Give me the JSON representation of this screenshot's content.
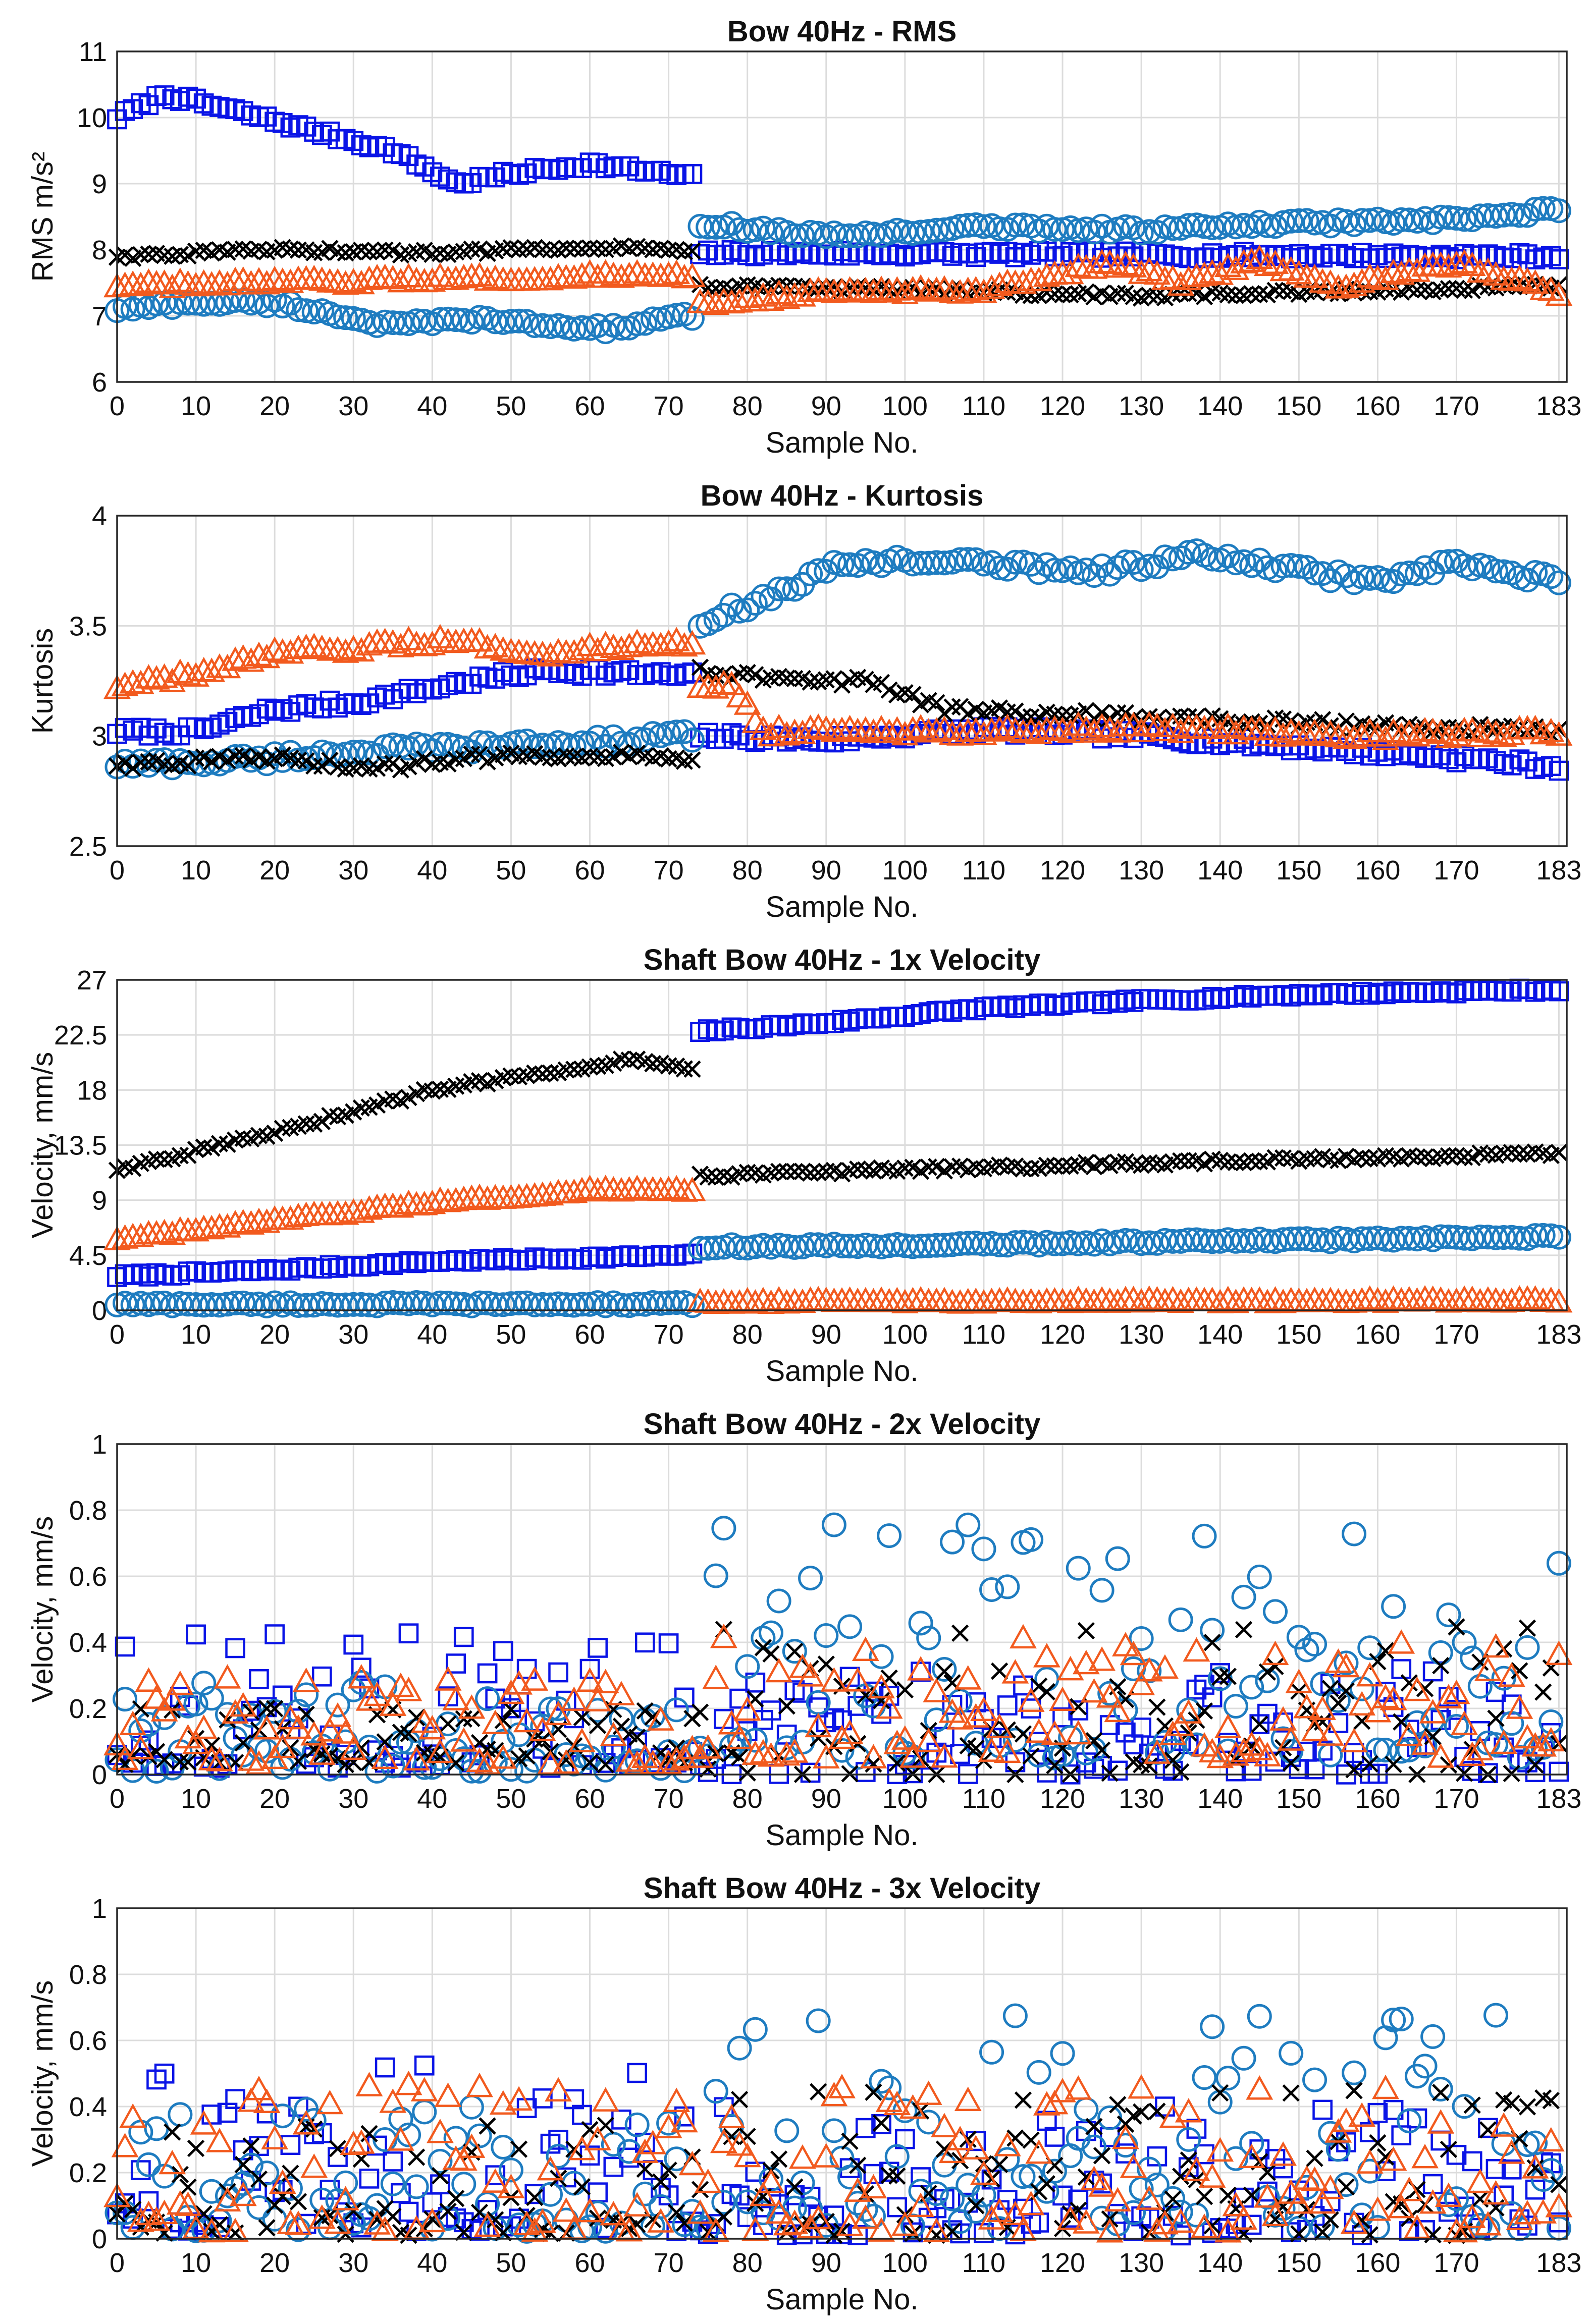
{
  "colors": {
    "squares": "#0a14e6",
    "circles": "#1e7cc0",
    "crosses": "#000000",
    "triangles": "#f25a1e"
  },
  "chart_data": [
    {
      "type": "scatter",
      "title": "Bow 40Hz - RMS",
      "xlabel": "Sample No.",
      "ylabel": "RMS m/s²",
      "xlim": [
        0,
        184
      ],
      "ylim": [
        6,
        11
      ],
      "xticks": [
        "0",
        "10",
        "20",
        "30",
        "40",
        "50",
        "60",
        "70",
        "80",
        "90",
        "100",
        "110",
        "120",
        "130",
        "140",
        "150",
        "160",
        "170",
        "183"
      ],
      "yticks": [
        "6",
        "7",
        "8",
        "9",
        "10",
        "11"
      ],
      "grid": true,
      "series": [
        {
          "name": "Squares",
          "marker": "square",
          "color": "#0a14e6",
          "kind": "smooth",
          "anchors1": [
            [
              0,
              10.0
            ],
            [
              6,
              10.35
            ],
            [
              15,
              10.1
            ],
            [
              25,
              9.8
            ],
            [
              35,
              9.5
            ],
            [
              43,
              9.0
            ],
            [
              50,
              9.15
            ],
            [
              60,
              9.3
            ],
            [
              73,
              9.1
            ]
          ],
          "anchors2": [
            [
              74,
              7.95
            ],
            [
              183,
              7.9
            ]
          ],
          "noise": 0.05
        },
        {
          "name": "Circles",
          "marker": "circle",
          "color": "#1e7cc0",
          "kind": "smooth",
          "anchors1": [
            [
              0,
              7.1
            ],
            [
              10,
              7.2
            ],
            [
              20,
              7.2
            ],
            [
              35,
              6.85
            ],
            [
              45,
              6.95
            ],
            [
              55,
              6.85
            ],
            [
              62,
              6.8
            ],
            [
              73,
              7.0
            ]
          ],
          "anchors2": [
            [
              74,
              8.4
            ],
            [
              90,
              8.2
            ],
            [
              110,
              8.35
            ],
            [
              130,
              8.3
            ],
            [
              150,
              8.4
            ],
            [
              170,
              8.45
            ],
            [
              183,
              8.6
            ]
          ],
          "noise": 0.05
        },
        {
          "name": "Crosses",
          "marker": "cross",
          "color": "#000000",
          "kind": "smooth",
          "anchors1": [
            [
              0,
              7.9
            ],
            [
              20,
              8.0
            ],
            [
              40,
              7.95
            ],
            [
              60,
              8.05
            ],
            [
              73,
              8.0
            ]
          ],
          "anchors2": [
            [
              74,
              7.45
            ],
            [
              100,
              7.4
            ],
            [
              130,
              7.3
            ],
            [
              183,
              7.45
            ]
          ],
          "noise": 0.04
        },
        {
          "name": "Triangles",
          "marker": "triangle",
          "color": "#f25a1e",
          "kind": "smooth",
          "anchors1": [
            [
              0,
              7.45
            ],
            [
              20,
              7.5
            ],
            [
              40,
              7.55
            ],
            [
              60,
              7.6
            ],
            [
              73,
              7.6
            ]
          ],
          "anchors2": [
            [
              74,
              7.2
            ],
            [
              90,
              7.35
            ],
            [
              110,
              7.4
            ],
            [
              126,
              7.8
            ],
            [
              135,
              7.5
            ],
            [
              145,
              7.85
            ],
            [
              155,
              7.45
            ],
            [
              170,
              7.8
            ],
            [
              183,
              7.35
            ]
          ],
          "noise": 0.05
        }
      ]
    },
    {
      "type": "scatter",
      "title": "Bow 40Hz - Kurtosis",
      "xlabel": "Sample No.",
      "ylabel": "Kurtosis",
      "xlim": [
        0,
        184
      ],
      "ylim": [
        2.5,
        4
      ],
      "xticks": [
        "0",
        "10",
        "20",
        "30",
        "40",
        "50",
        "60",
        "70",
        "80",
        "90",
        "100",
        "110",
        "120",
        "130",
        "140",
        "150",
        "160",
        "170",
        "183"
      ],
      "yticks": [
        "2.5",
        "3",
        "3.5",
        "4"
      ],
      "grid": true,
      "series": [
        {
          "name": "Squares",
          "marker": "square",
          "color": "#0a14e6",
          "kind": "smooth",
          "anchors1": [
            [
              0,
              3.02
            ],
            [
              10,
              3.02
            ],
            [
              20,
              3.12
            ],
            [
              30,
              3.15
            ],
            [
              45,
              3.25
            ],
            [
              55,
              3.3
            ],
            [
              73,
              3.27
            ]
          ],
          "anchors2": [
            [
              74,
              3.0
            ],
            [
              90,
              2.98
            ],
            [
              110,
              3.03
            ],
            [
              130,
              3.0
            ],
            [
              150,
              2.95
            ],
            [
              170,
              2.9
            ],
            [
              183,
              2.86
            ]
          ],
          "noise": 0.02
        },
        {
          "name": "Circles",
          "marker": "circle",
          "color": "#1e7cc0",
          "kind": "smooth",
          "anchors1": [
            [
              0,
              2.87
            ],
            [
              10,
              2.88
            ],
            [
              20,
              2.9
            ],
            [
              30,
              2.93
            ],
            [
              45,
              2.95
            ],
            [
              60,
              2.97
            ],
            [
              73,
              3.0
            ]
          ],
          "anchors2": [
            [
              74,
              3.52
            ],
            [
              82,
              3.62
            ],
            [
              92,
              3.78
            ],
            [
              100,
              3.8
            ],
            [
              110,
              3.78
            ],
            [
              125,
              3.75
            ],
            [
              137,
              3.82
            ],
            [
              150,
              3.75
            ],
            [
              160,
              3.7
            ],
            [
              170,
              3.78
            ],
            [
              183,
              3.7
            ]
          ],
          "noise": 0.025
        },
        {
          "name": "Crosses",
          "marker": "cross",
          "color": "#000000",
          "kind": "smooth",
          "anchors1": [
            [
              0,
              2.87
            ],
            [
              20,
              2.9
            ],
            [
              32,
              2.85
            ],
            [
              45,
              2.9
            ],
            [
              60,
              2.92
            ],
            [
              73,
              2.9
            ]
          ],
          "anchors2": [
            [
              74,
              3.3
            ],
            [
              85,
              3.25
            ],
            [
              95,
              3.25
            ],
            [
              105,
              3.12
            ],
            [
              120,
              3.1
            ],
            [
              140,
              3.07
            ],
            [
              160,
              3.05
            ],
            [
              183,
              3.02
            ]
          ],
          "noise": 0.02
        },
        {
          "name": "Triangles",
          "marker": "triangle",
          "color": "#f25a1e",
          "kind": "smooth",
          "anchors1": [
            [
              0,
              3.22
            ],
            [
              10,
              3.28
            ],
            [
              20,
              3.37
            ],
            [
              30,
              3.4
            ],
            [
              42,
              3.43
            ],
            [
              55,
              3.38
            ],
            [
              73,
              3.42
            ]
          ],
          "anchors2": [
            [
              74,
              3.22
            ],
            [
              78,
              3.25
            ],
            [
              82,
              3.02
            ],
            [
              100,
              3.02
            ],
            [
              120,
              3.03
            ],
            [
              140,
              3.03
            ],
            [
              160,
              3.0
            ],
            [
              183,
              3.02
            ]
          ],
          "noise": 0.02
        }
      ]
    },
    {
      "type": "scatter",
      "title": "Shaft Bow 40Hz - 1x Velocity",
      "xlabel": "Sample No.",
      "ylabel": "Velocity, mm/s",
      "xlim": [
        0,
        184
      ],
      "ylim": [
        0,
        27
      ],
      "xticks": [
        "0",
        "10",
        "20",
        "30",
        "40",
        "50",
        "60",
        "70",
        "80",
        "90",
        "100",
        "110",
        "120",
        "130",
        "140",
        "150",
        "160",
        "170",
        "183"
      ],
      "yticks": [
        "0",
        "4.5",
        "9",
        "13.5",
        "18",
        "22.5",
        "27"
      ],
      "grid": true,
      "series": [
        {
          "name": "Squares",
          "marker": "square",
          "color": "#0a14e6",
          "kind": "smooth",
          "anchors1": [
            [
              0,
              2.8
            ],
            [
              20,
              3.3
            ],
            [
              40,
              4.0
            ],
            [
              60,
              4.3
            ],
            [
              73,
              4.5
            ]
          ],
          "anchors2": [
            [
              74,
              22.8
            ],
            [
              90,
              23.5
            ],
            [
              110,
              24.7
            ],
            [
              130,
              25.3
            ],
            [
              150,
              25.8
            ],
            [
              183,
              26.2
            ]
          ],
          "noise": 0.15
        },
        {
          "name": "Circles",
          "marker": "circle",
          "color": "#1e7cc0",
          "kind": "smooth",
          "anchors1": [
            [
              0,
              0.5
            ],
            [
              73,
              0.5
            ]
          ],
          "anchors2": [
            [
              74,
              5.2
            ],
            [
              100,
              5.3
            ],
            [
              130,
              5.6
            ],
            [
              160,
              5.8
            ],
            [
              183,
              6.0
            ]
          ],
          "noise": 0.15
        },
        {
          "name": "Crosses",
          "marker": "cross",
          "color": "#000000",
          "kind": "smooth",
          "anchors1": [
            [
              0,
              11.5
            ],
            [
              20,
              14.5
            ],
            [
              40,
              18.0
            ],
            [
              55,
              19.5
            ],
            [
              65,
              20.5
            ],
            [
              73,
              19.8
            ]
          ],
          "anchors2": [
            [
              74,
              11.0
            ],
            [
              100,
              11.5
            ],
            [
              130,
              12.0
            ],
            [
              160,
              12.5
            ],
            [
              183,
              12.8
            ]
          ],
          "noise": 0.2
        },
        {
          "name": "Triangles",
          "marker": "triangle",
          "color": "#f25a1e",
          "kind": "smooth",
          "anchors1": [
            [
              0,
              5.8
            ],
            [
              20,
              7.3
            ],
            [
              40,
              8.8
            ],
            [
              60,
              9.8
            ],
            [
              73,
              9.8
            ]
          ],
          "anchors2": [
            [
              74,
              0.7
            ],
            [
              183,
              0.8
            ]
          ],
          "noise": 0.15
        }
      ]
    },
    {
      "type": "scatter",
      "title": "Shaft Bow 40Hz - 2x Velocity",
      "xlabel": "Sample No.",
      "ylabel": "Velocity, mm/s",
      "xlim": [
        0,
        184
      ],
      "ylim": [
        0,
        1
      ],
      "xticks": [
        "0",
        "10",
        "20",
        "30",
        "40",
        "50",
        "60",
        "70",
        "80",
        "90",
        "100",
        "110",
        "120",
        "130",
        "140",
        "150",
        "160",
        "170",
        "183"
      ],
      "yticks": [
        "0",
        "0.2",
        "0.4",
        "0.6",
        "0.8",
        "1"
      ],
      "grid": true,
      "series": [
        {
          "name": "Squares",
          "marker": "square",
          "color": "#0a14e6",
          "kind": "random",
          "seed": 11,
          "ranges": [
            [
              0,
              73,
              0.02,
              0.45
            ],
            [
              74,
              183,
              0.0,
              0.32
            ]
          ]
        },
        {
          "name": "Circles",
          "marker": "circle",
          "color": "#1e7cc0",
          "kind": "random",
          "seed": 23,
          "ranges": [
            [
              0,
              73,
              0.01,
              0.28
            ],
            [
              74,
              183,
              0.05,
              0.77
            ]
          ]
        },
        {
          "name": "Crosses",
          "marker": "cross",
          "color": "#000000",
          "kind": "random",
          "seed": 37,
          "ranges": [
            [
              0,
              73,
              0.03,
              0.2
            ],
            [
              74,
              183,
              0.0,
              0.45
            ]
          ]
        },
        {
          "name": "Triangles",
          "marker": "triangle",
          "color": "#f25a1e",
          "kind": "random",
          "seed": 51,
          "ranges": [
            [
              0,
              73,
              0.03,
              0.3
            ],
            [
              74,
              183,
              0.05,
              0.42
            ]
          ]
        }
      ]
    },
    {
      "type": "scatter",
      "title": "Shaft Bow 40Hz - 3x Velocity",
      "xlabel": "Sample No.",
      "ylabel": "Velocity, mm/s",
      "xlim": [
        0,
        184
      ],
      "ylim": [
        0,
        1
      ],
      "xticks": [
        "0",
        "10",
        "20",
        "30",
        "40",
        "50",
        "60",
        "70",
        "80",
        "90",
        "100",
        "110",
        "120",
        "130",
        "140",
        "150",
        "160",
        "170",
        "183"
      ],
      "yticks": [
        "0",
        "0.2",
        "0.4",
        "0.6",
        "0.8",
        "1"
      ],
      "grid": true,
      "series": [
        {
          "name": "Squares",
          "marker": "square",
          "color": "#0a14e6",
          "kind": "random",
          "seed": 71,
          "ranges": [
            [
              0,
              73,
              0.02,
              0.53
            ],
            [
              74,
              183,
              0.01,
              0.4
            ]
          ]
        },
        {
          "name": "Circles",
          "marker": "circle",
          "color": "#1e7cc0",
          "kind": "random",
          "seed": 83,
          "ranges": [
            [
              0,
              73,
              0.02,
              0.42
            ],
            [
              74,
              183,
              0.03,
              0.68
            ]
          ]
        },
        {
          "name": "Crosses",
          "marker": "cross",
          "color": "#000000",
          "kind": "random",
          "seed": 97,
          "ranges": [
            [
              0,
              73,
              0.01,
              0.35
            ],
            [
              74,
              183,
              0.01,
              0.45
            ]
          ]
        },
        {
          "name": "Triangles",
          "marker": "triangle",
          "color": "#f25a1e",
          "kind": "random",
          "seed": 101,
          "ranges": [
            [
              0,
              73,
              0.02,
              0.47
            ],
            [
              74,
              183,
              0.02,
              0.46
            ]
          ]
        }
      ]
    }
  ]
}
